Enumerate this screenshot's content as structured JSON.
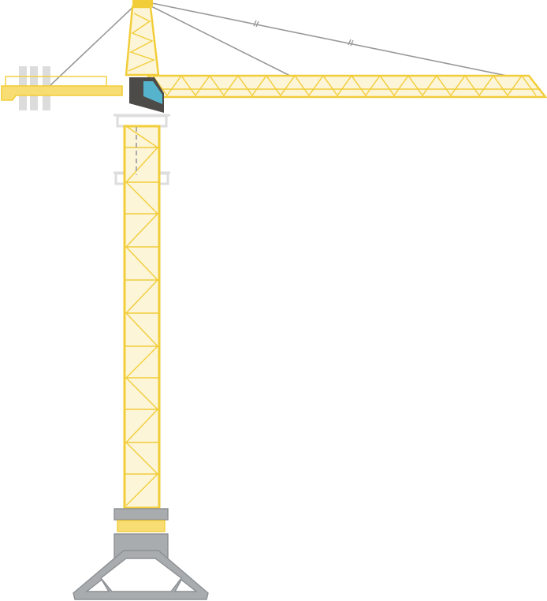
{
  "illustration": {
    "subject": "tower-crane",
    "colors": {
      "structure_stroke": "#f2cd3a",
      "structure_fill": "#fdf5d8",
      "counter_jib_fill": "#f8dd74",
      "cable": "#999999",
      "ballast": "#dcdcdc",
      "platform": "#dddddd",
      "base_gray": "#a8acaf",
      "base_stroke": "#8c9094",
      "cab_dark": "#4d4b48",
      "cab_window": "#56b3cc",
      "ladder": "#aaaaaa"
    }
  }
}
